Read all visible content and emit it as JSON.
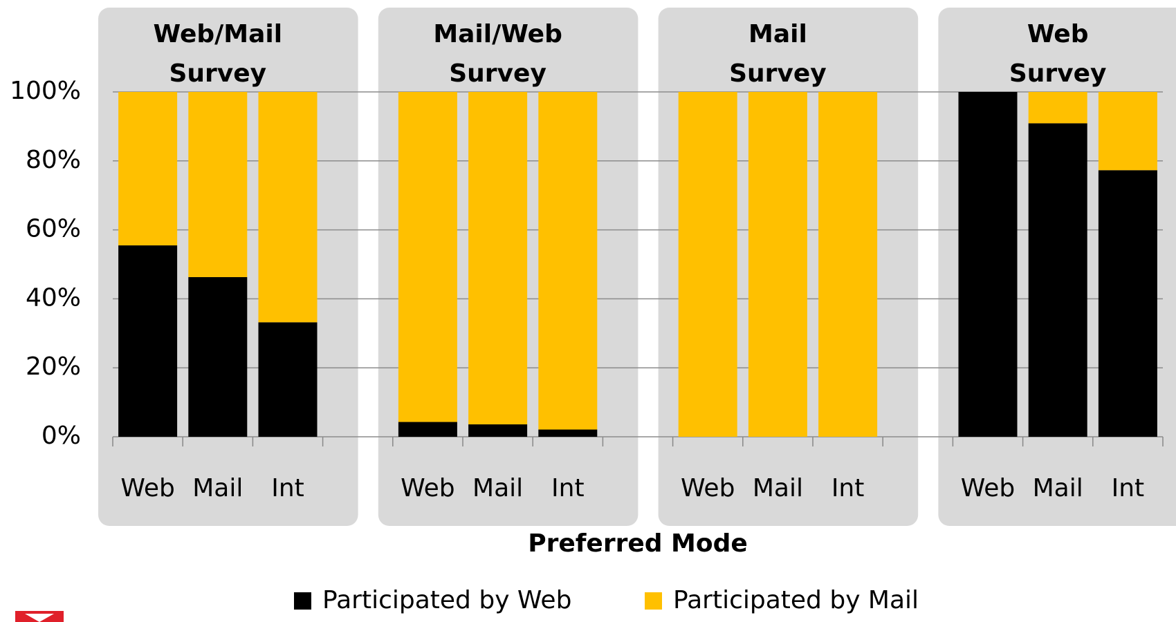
{
  "chart_data": {
    "type": "bar",
    "stacked": true,
    "groups": [
      {
        "name": "Web/Mail Survey",
        "categories": [
          "Web",
          "Mail",
          "Int"
        ]
      },
      {
        "name": "Mail/Web Survey",
        "categories": [
          "Web",
          "Mail",
          "Int"
        ]
      },
      {
        "name": "Mail Survey",
        "categories": [
          "Web",
          "Mail",
          "Int"
        ]
      },
      {
        "name": "Web Survey",
        "categories": [
          "Web",
          "Mail",
          "Int"
        ]
      }
    ],
    "series": [
      {
        "name": "Participated by Web",
        "color": "#000000",
        "values": [
          55.5,
          46.3,
          33.2,
          4.3,
          3.6,
          2.1,
          0,
          0,
          0,
          100,
          90.9,
          77.3
        ]
      },
      {
        "name": "Participated by Mail",
        "color": "#FFC000",
        "values": [
          44.5,
          53.7,
          66.8,
          95.7,
          96.4,
          97.9,
          100,
          100,
          100,
          0,
          9.1,
          22.7
        ]
      }
    ],
    "xlabel": "Preferred Mode",
    "ylim": [
      0,
      100
    ],
    "yticks": [
      {
        "value": 0,
        "label": "0%"
      },
      {
        "value": 20,
        "label": "20%"
      },
      {
        "value": 40,
        "label": "40%"
      },
      {
        "value": 60,
        "label": "60%"
      },
      {
        "value": 80,
        "label": "80%"
      },
      {
        "value": 100,
        "label": "100%"
      }
    ],
    "grid": true,
    "legend": "bottom"
  }
}
